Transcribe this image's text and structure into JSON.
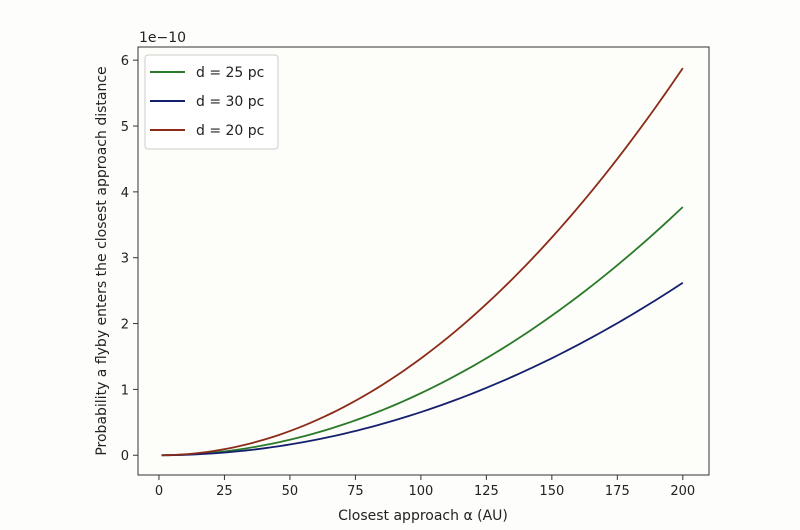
{
  "chart_data": {
    "type": "line",
    "title": "",
    "xlabel": "Closest approach α (AU)",
    "ylabel": "Probability a flyby enters the closest approach distance",
    "y_offset_label": "1e−10",
    "xlim": [
      -8,
      210
    ],
    "ylim": [
      -0.3,
      6.2
    ],
    "x_ticks": [
      0,
      25,
      50,
      75,
      100,
      125,
      150,
      175,
      200
    ],
    "y_ticks": [
      0,
      1,
      2,
      3,
      4,
      5,
      6
    ],
    "grid": false,
    "legend_position": "top-left",
    "x": [
      1,
      25,
      50,
      75,
      100,
      125,
      150,
      175,
      200
    ],
    "series": [
      {
        "name": "d = 25 pc",
        "color": "#2a7a2a",
        "values": [
          0.0,
          0.06,
          0.24,
          0.53,
          0.94,
          1.47,
          2.12,
          2.89,
          3.77
        ]
      },
      {
        "name": "d = 30 pc",
        "color": "#14206e",
        "values": [
          0.0,
          0.04,
          0.16,
          0.37,
          0.65,
          1.02,
          1.47,
          2.01,
          2.62
        ]
      },
      {
        "name": "d = 20 pc",
        "color": "#8b2b1a",
        "values": [
          0.0,
          0.09,
          0.37,
          0.83,
          1.47,
          2.3,
          3.31,
          4.51,
          5.88
        ]
      }
    ]
  }
}
